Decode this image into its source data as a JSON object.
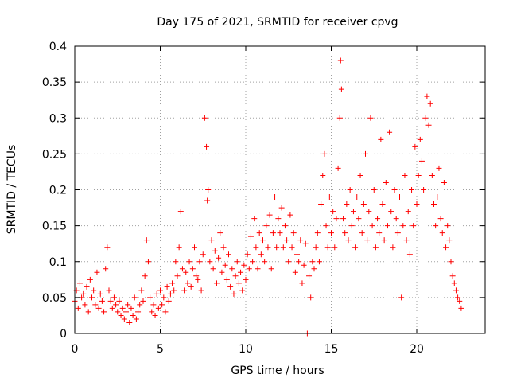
{
  "chart_data": {
    "type": "scatter",
    "title": "Day 175 of 2021, SRMTID for receiver cpvg",
    "xlabel": "GPS time / hours",
    "ylabel": "SRMTID / TECUs",
    "xlim": [
      0,
      24
    ],
    "ylim": [
      0,
      0.4
    ],
    "x_ticks": [
      0,
      5,
      10,
      15,
      20
    ],
    "x_tick_labels": [
      "0",
      "5",
      "10",
      "15",
      "20"
    ],
    "y_ticks": [
      0,
      0.05,
      0.1,
      0.15,
      0.2,
      0.25,
      0.3,
      0.35,
      0.4
    ],
    "y_tick_labels": [
      "0",
      "0.05",
      "0.1",
      "0.15",
      "0.2",
      "0.25",
      "0.3",
      "0.35",
      "0.4"
    ],
    "grid": true,
    "marker": "+",
    "series": [
      {
        "name": "SRMTID",
        "color": "#ff0000",
        "points": [
          [
            0.0,
            0.045
          ],
          [
            0.1,
            0.06
          ],
          [
            0.2,
            0.035
          ],
          [
            0.3,
            0.07
          ],
          [
            0.4,
            0.05
          ],
          [
            0.5,
            0.055
          ],
          [
            0.6,
            0.04
          ],
          [
            0.7,
            0.065
          ],
          [
            0.8,
            0.03
          ],
          [
            0.9,
            0.075
          ],
          [
            1.0,
            0.05
          ],
          [
            1.1,
            0.06
          ],
          [
            1.2,
            0.04
          ],
          [
            1.3,
            0.085
          ],
          [
            1.4,
            0.035
          ],
          [
            1.5,
            0.055
          ],
          [
            1.6,
            0.045
          ],
          [
            1.7,
            0.03
          ],
          [
            1.8,
            0.09
          ],
          [
            1.9,
            0.12
          ],
          [
            2.0,
            0.06
          ],
          [
            2.1,
            0.045
          ],
          [
            2.2,
            0.035
          ],
          [
            2.3,
            0.05
          ],
          [
            2.4,
            0.04
          ],
          [
            2.5,
            0.03
          ],
          [
            2.6,
            0.045
          ],
          [
            2.7,
            0.025
          ],
          [
            2.8,
            0.035
          ],
          [
            2.9,
            0.02
          ],
          [
            3.0,
            0.03
          ],
          [
            3.1,
            0.04
          ],
          [
            3.2,
            0.015
          ],
          [
            3.3,
            0.035
          ],
          [
            3.4,
            0.025
          ],
          [
            3.5,
            0.05
          ],
          [
            3.6,
            0.02
          ],
          [
            3.7,
            0.03
          ],
          [
            3.8,
            0.04
          ],
          [
            3.9,
            0.06
          ],
          [
            4.0,
            0.045
          ],
          [
            4.1,
            0.08
          ],
          [
            4.2,
            0.13
          ],
          [
            4.3,
            0.1
          ],
          [
            4.4,
            0.05
          ],
          [
            4.5,
            0.03
          ],
          [
            4.6,
            0.04
          ],
          [
            4.7,
            0.025
          ],
          [
            4.8,
            0.055
          ],
          [
            4.9,
            0.035
          ],
          [
            5.0,
            0.06
          ],
          [
            5.1,
            0.04
          ],
          [
            5.2,
            0.05
          ],
          [
            5.3,
            0.03
          ],
          [
            5.4,
            0.065
          ],
          [
            5.5,
            0.045
          ],
          [
            5.6,
            0.055
          ],
          [
            5.7,
            0.07
          ],
          [
            5.8,
            0.06
          ],
          [
            5.9,
            0.1
          ],
          [
            6.0,
            0.08
          ],
          [
            6.1,
            0.12
          ],
          [
            6.2,
            0.17
          ],
          [
            6.3,
            0.09
          ],
          [
            6.4,
            0.06
          ],
          [
            6.5,
            0.085
          ],
          [
            6.6,
            0.07
          ],
          [
            6.7,
            0.1
          ],
          [
            6.8,
            0.065
          ],
          [
            6.9,
            0.09
          ],
          [
            7.0,
            0.12
          ],
          [
            7.1,
            0.08
          ],
          [
            7.2,
            0.075
          ],
          [
            7.3,
            0.1
          ],
          [
            7.4,
            0.06
          ],
          [
            7.5,
            0.11
          ],
          [
            7.6,
            0.3
          ],
          [
            7.7,
            0.26
          ],
          [
            7.75,
            0.185
          ],
          [
            7.8,
            0.2
          ],
          [
            7.9,
            0.1
          ],
          [
            8.0,
            0.13
          ],
          [
            8.1,
            0.09
          ],
          [
            8.2,
            0.115
          ],
          [
            8.3,
            0.07
          ],
          [
            8.4,
            0.105
          ],
          [
            8.5,
            0.14
          ],
          [
            8.6,
            0.085
          ],
          [
            8.7,
            0.12
          ],
          [
            8.8,
            0.095
          ],
          [
            8.9,
            0.075
          ],
          [
            9.0,
            0.11
          ],
          [
            9.1,
            0.065
          ],
          [
            9.2,
            0.09
          ],
          [
            9.3,
            0.055
          ],
          [
            9.4,
            0.08
          ],
          [
            9.5,
            0.1
          ],
          [
            9.6,
            0.07
          ],
          [
            9.7,
            0.085
          ],
          [
            9.8,
            0.06
          ],
          [
            9.9,
            0.095
          ],
          [
            10.0,
            0.075
          ],
          [
            10.1,
            0.11
          ],
          [
            10.2,
            0.09
          ],
          [
            10.3,
            0.135
          ],
          [
            10.4,
            0.1
          ],
          [
            10.5,
            0.16
          ],
          [
            10.6,
            0.12
          ],
          [
            10.7,
            0.09
          ],
          [
            10.8,
            0.14
          ],
          [
            10.9,
            0.11
          ],
          [
            11.0,
            0.13
          ],
          [
            11.1,
            0.1
          ],
          [
            11.2,
            0.15
          ],
          [
            11.3,
            0.12
          ],
          [
            11.4,
            0.165
          ],
          [
            11.5,
            0.09
          ],
          [
            11.6,
            0.14
          ],
          [
            11.7,
            0.19
          ],
          [
            11.8,
            0.12
          ],
          [
            11.9,
            0.16
          ],
          [
            12.0,
            0.14
          ],
          [
            12.1,
            0.175
          ],
          [
            12.2,
            0.12
          ],
          [
            12.3,
            0.15
          ],
          [
            12.4,
            0.13
          ],
          [
            12.5,
            0.1
          ],
          [
            12.6,
            0.165
          ],
          [
            12.7,
            0.12
          ],
          [
            12.8,
            0.14
          ],
          [
            12.9,
            0.085
          ],
          [
            13.0,
            0.11
          ],
          [
            13.1,
            0.1
          ],
          [
            13.2,
            0.13
          ],
          [
            13.3,
            0.07
          ],
          [
            13.4,
            0.095
          ],
          [
            13.5,
            0.125
          ],
          [
            13.6,
            0.0
          ],
          [
            13.7,
            0.08
          ],
          [
            13.8,
            0.05
          ],
          [
            13.9,
            0.1
          ],
          [
            14.0,
            0.09
          ],
          [
            14.1,
            0.12
          ],
          [
            14.2,
            0.14
          ],
          [
            14.3,
            0.1
          ],
          [
            14.4,
            0.18
          ],
          [
            14.5,
            0.22
          ],
          [
            14.6,
            0.25
          ],
          [
            14.7,
            0.15
          ],
          [
            14.8,
            0.12
          ],
          [
            14.9,
            0.19
          ],
          [
            15.0,
            0.14
          ],
          [
            15.1,
            0.17
          ],
          [
            15.2,
            0.12
          ],
          [
            15.3,
            0.16
          ],
          [
            15.4,
            0.23
          ],
          [
            15.5,
            0.3
          ],
          [
            15.55,
            0.38
          ],
          [
            15.6,
            0.34
          ],
          [
            15.7,
            0.16
          ],
          [
            15.8,
            0.14
          ],
          [
            15.9,
            0.18
          ],
          [
            16.0,
            0.13
          ],
          [
            16.1,
            0.2
          ],
          [
            16.2,
            0.15
          ],
          [
            16.3,
            0.17
          ],
          [
            16.4,
            0.12
          ],
          [
            16.5,
            0.19
          ],
          [
            16.6,
            0.16
          ],
          [
            16.7,
            0.22
          ],
          [
            16.8,
            0.14
          ],
          [
            16.9,
            0.18
          ],
          [
            17.0,
            0.25
          ],
          [
            17.1,
            0.13
          ],
          [
            17.2,
            0.17
          ],
          [
            17.3,
            0.3
          ],
          [
            17.4,
            0.15
          ],
          [
            17.5,
            0.2
          ],
          [
            17.6,
            0.12
          ],
          [
            17.7,
            0.16
          ],
          [
            17.8,
            0.14
          ],
          [
            17.9,
            0.27
          ],
          [
            18.0,
            0.18
          ],
          [
            18.1,
            0.13
          ],
          [
            18.2,
            0.21
          ],
          [
            18.3,
            0.15
          ],
          [
            18.4,
            0.28
          ],
          [
            18.5,
            0.17
          ],
          [
            18.6,
            0.12
          ],
          [
            18.7,
            0.2
          ],
          [
            18.8,
            0.16
          ],
          [
            18.9,
            0.14
          ],
          [
            19.0,
            0.19
          ],
          [
            19.1,
            0.05
          ],
          [
            19.2,
            0.15
          ],
          [
            19.3,
            0.22
          ],
          [
            19.4,
            0.13
          ],
          [
            19.5,
            0.17
          ],
          [
            19.6,
            0.11
          ],
          [
            19.7,
            0.2
          ],
          [
            19.8,
            0.15
          ],
          [
            19.9,
            0.26
          ],
          [
            20.0,
            0.18
          ],
          [
            20.1,
            0.22
          ],
          [
            20.2,
            0.27
          ],
          [
            20.3,
            0.24
          ],
          [
            20.4,
            0.2
          ],
          [
            20.5,
            0.3
          ],
          [
            20.6,
            0.33
          ],
          [
            20.7,
            0.29
          ],
          [
            20.8,
            0.32
          ],
          [
            20.9,
            0.22
          ],
          [
            21.0,
            0.18
          ],
          [
            21.1,
            0.15
          ],
          [
            21.2,
            0.19
          ],
          [
            21.3,
            0.23
          ],
          [
            21.4,
            0.16
          ],
          [
            21.5,
            0.14
          ],
          [
            21.6,
            0.21
          ],
          [
            21.7,
            0.12
          ],
          [
            21.8,
            0.15
          ],
          [
            21.9,
            0.13
          ],
          [
            22.0,
            0.1
          ],
          [
            22.1,
            0.08
          ],
          [
            22.2,
            0.07
          ],
          [
            22.3,
            0.06
          ],
          [
            22.4,
            0.05
          ],
          [
            22.5,
            0.045
          ],
          [
            22.6,
            0.035
          ]
        ]
      }
    ]
  }
}
